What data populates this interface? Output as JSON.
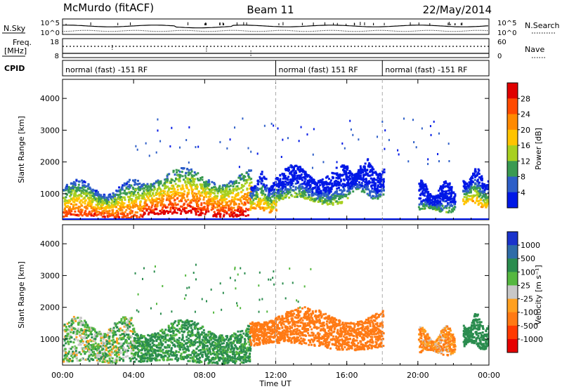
{
  "header": {
    "station": "McMurdo (fitACF)",
    "beam": "Beam 11",
    "date": "22/May/2014"
  },
  "strip": {
    "nsky_label": "N.Sky",
    "nsky_ticks": [
      "10^5",
      "10^0"
    ],
    "nsearch_label": "N.Search",
    "nsearch_ticks": [
      "10^5",
      "10^0"
    ],
    "freq_label": "Freq.",
    "freq_unit": "[MHz]",
    "freq_ticks": [
      "18",
      "8"
    ],
    "nave_label": "Nave",
    "nave_ticks": [
      "60",
      "0"
    ],
    "cpid_label": "CPID",
    "modes": [
      {
        "label": "normal (fast) -151 RF",
        "start_hour": 0
      },
      {
        "label": "normal (fast) 151 RF",
        "start_hour": 12
      },
      {
        "label": "normal (fast) -151 RF",
        "start_hour": 18
      }
    ]
  },
  "colorbars": {
    "power": {
      "title": "Power [dB]",
      "ticks": [
        "28",
        "24",
        "20",
        "16",
        "12",
        "8",
        "4"
      ],
      "colors": [
        "#e00000",
        "#ff4a00",
        "#ff8a00",
        "#ffc400",
        "#a8d020",
        "#3a9a52",
        "#2e5fc8",
        "#0018e6"
      ]
    },
    "velocity": {
      "title": "Velocity [m s⁻¹]",
      "ticks": [
        "1000",
        "500",
        "100",
        "25",
        "-25",
        "-100",
        "-500",
        "-1000"
      ],
      "colors": [
        "#1a33cc",
        "#2e6ca8",
        "#2a8c4e",
        "#55b840",
        "#c8c8c8",
        "#ffa020",
        "#ff7a14",
        "#ff3a00",
        "#e60000"
      ]
    }
  },
  "chart_data": [
    {
      "type": "heatmap",
      "title": "Power",
      "xlabel": "Time UT",
      "ylabel": "Slant Range [km]",
      "x_ticks": [
        "00:00",
        "04:00",
        "08:00",
        "12:00",
        "16:00",
        "20:00",
        "00:00"
      ],
      "xlim_hours": [
        0,
        24
      ],
      "y_ticks": [
        "1000",
        "2000",
        "3000",
        "4000"
      ],
      "ylim": [
        180,
        4600
      ],
      "colorbar_range": [
        0,
        30
      ],
      "colorbar_unit": "dB",
      "bands": [
        {
          "hours": [
            0.0,
            4.5
          ],
          "lower_km": [
            300,
            1250
          ],
          "level_db": 26
        },
        {
          "hours": [
            4.5,
            10.5
          ],
          "lower_km": [
            350,
            1600
          ],
          "level_db": 29
        },
        {
          "hours": [
            10.5,
            12.0
          ],
          "lower_km": [
            500,
            1500
          ],
          "level_db": 20
        },
        {
          "hours": [
            12.0,
            16.0
          ],
          "lower_km": [
            800,
            1700
          ],
          "level_db": 12
        },
        {
          "hours": [
            16.0,
            18.0
          ],
          "lower_km": [
            1000,
            1900
          ],
          "level_db": 8
        },
        {
          "hours": [
            20.0,
            22.0
          ],
          "lower_km": [
            500,
            1200
          ],
          "level_db": 10
        },
        {
          "hours": [
            22.5,
            24.0
          ],
          "lower_km": [
            700,
            1600
          ],
          "level_db": 18
        }
      ]
    },
    {
      "type": "heatmap",
      "title": "Velocity",
      "xlabel": "Time UT",
      "ylabel": "Slant Range [km]",
      "x_ticks": [
        "00:00",
        "04:00",
        "08:00",
        "12:00",
        "16:00",
        "20:00",
        "00:00"
      ],
      "xlim_hours": [
        0,
        24
      ],
      "y_ticks": [
        "1000",
        "2000",
        "3000",
        "4000"
      ],
      "ylim": [
        180,
        4600
      ],
      "colorbar_unit": "m s-1",
      "bands": [
        {
          "hours": [
            0.0,
            4.0
          ],
          "lower_km": [
            300,
            1500
          ],
          "velocity": 50
        },
        {
          "hours": [
            4.0,
            10.5
          ],
          "lower_km": [
            300,
            1400
          ],
          "velocity": 150
        },
        {
          "hours": [
            10.5,
            18.0
          ],
          "lower_km": [
            800,
            1800
          ],
          "velocity": -300
        },
        {
          "hours": [
            20.0,
            22.0
          ],
          "lower_km": [
            600,
            1200
          ],
          "velocity": -100
        },
        {
          "hours": [
            22.5,
            24.0
          ],
          "lower_km": [
            800,
            1600
          ],
          "velocity": 300
        }
      ]
    }
  ]
}
